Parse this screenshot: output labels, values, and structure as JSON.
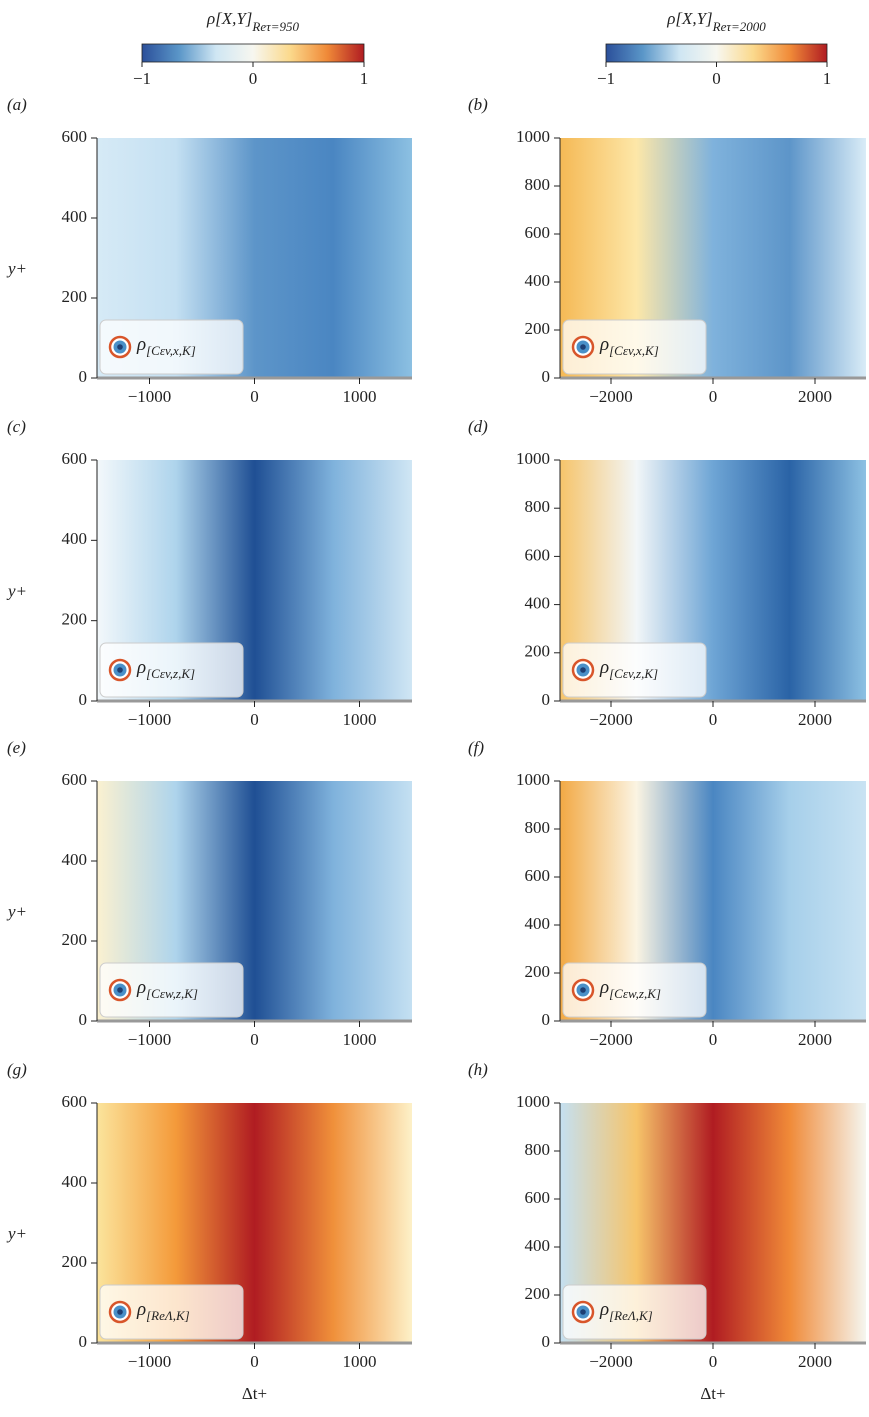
{
  "colorbars": [
    {
      "label": "ρ[X,Y]",
      "label_subscript": "Reτ=950",
      "ticks": [
        {
          "value": -1,
          "label": "−1"
        },
        0,
        1
      ],
      "lim": [
        -1,
        1
      ],
      "colormap": [
        "#2b4f9a",
        "#5a96c8",
        "#cfe6f3",
        "#f7f7f0",
        "#fbd98c",
        "#f08a38",
        "#b01c22"
      ]
    },
    {
      "label": "ρ[X,Y]",
      "label_subscript": "Reτ=2000",
      "ticks": [
        {
          "value": -1,
          "label": "−1"
        },
        0,
        1
      ],
      "lim": [
        -1,
        1
      ],
      "colormap": [
        "#2b4f9a",
        "#5a96c8",
        "#cfe6f3",
        "#f7f7f0",
        "#fbd98c",
        "#f08a38",
        "#b01c22"
      ]
    }
  ],
  "chart_data": [
    {
      "type": "contour",
      "panel_label": "(a)",
      "legend": "ρ",
      "legend_subscript": "[Cεv,x,K]",
      "ylabel": "y+",
      "xlim": [
        -1500,
        1500
      ],
      "ylim": [
        0,
        600
      ],
      "xticks": [
        {
          "value": -1000,
          "label": "−1000"
        },
        0,
        1000
      ],
      "yticks": [
        0,
        200,
        400,
        600
      ],
      "colors": [
        "#d6eaf6",
        "#c4e0f2",
        "#5d95c9",
        "#4a86c2",
        "#8cc0e2"
      ]
    },
    {
      "type": "contour",
      "panel_label": "(b)",
      "legend": "ρ",
      "legend_subscript": "[Cεv,x,K]",
      "xlim": [
        -3000,
        3000
      ],
      "ylim": [
        0,
        1000
      ],
      "xticks": [
        {
          "value": -2000,
          "label": "−2000"
        },
        0,
        2000
      ],
      "yticks": [
        0,
        200,
        400,
        600,
        800,
        1000
      ],
      "colors": [
        "#f5b955",
        "#fde7a8",
        "#7fb2dc",
        "#5d95c9",
        "#d9ecf7"
      ]
    },
    {
      "type": "contour",
      "panel_label": "(c)",
      "legend": "ρ",
      "legend_subscript": "[Cεv,z,K]",
      "ylabel": "y+",
      "xlim": [
        -1500,
        1500
      ],
      "ylim": [
        0,
        600
      ],
      "xticks": [
        {
          "value": -1000,
          "label": "−1000"
        },
        0,
        1000
      ],
      "yticks": [
        0,
        200,
        400,
        600
      ],
      "colors": [
        "#f3f8fb",
        "#aed4ec",
        "#1f4f94",
        "#7fb2dc",
        "#d0e6f4"
      ]
    },
    {
      "type": "contour",
      "panel_label": "(d)",
      "legend": "ρ",
      "legend_subscript": "[Cεv,z,K]",
      "xlim": [
        -3000,
        3000
      ],
      "ylim": [
        0,
        1000
      ],
      "xticks": [
        {
          "value": -2000,
          "label": "−2000"
        },
        0,
        2000
      ],
      "yticks": [
        0,
        200,
        400,
        600,
        800,
        1000
      ],
      "colors": [
        "#f6c46a",
        "#f2f6f8",
        "#6ea5d5",
        "#2a63a6",
        "#8dc1e3"
      ]
    },
    {
      "type": "contour",
      "panel_label": "(e)",
      "legend": "ρ",
      "legend_subscript": "[Cεw,z,K]",
      "ylabel": "y+",
      "xlim": [
        -1500,
        1500
      ],
      "ylim": [
        0,
        600
      ],
      "xticks": [
        {
          "value": -1000,
          "label": "−1000"
        },
        0,
        1000
      ],
      "yticks": [
        0,
        200,
        400,
        600
      ],
      "colors": [
        "#fbf1d0",
        "#aed4ec",
        "#1f4f94",
        "#7fb2dc",
        "#c4e0f2"
      ]
    },
    {
      "type": "contour",
      "panel_label": "(f)",
      "legend": "ρ",
      "legend_subscript": "[Cεw,z,K]",
      "xlim": [
        -3000,
        3000
      ],
      "ylim": [
        0,
        1000
      ],
      "xticks": [
        {
          "value": -2000,
          "label": "−2000"
        },
        0,
        2000
      ],
      "yticks": [
        0,
        200,
        400,
        600,
        800,
        1000
      ],
      "colors": [
        "#f2a944",
        "#fbf4e2",
        "#4a86c2",
        "#a6cfea",
        "#c9e3f3"
      ]
    },
    {
      "type": "contour",
      "panel_label": "(g)",
      "legend": "ρ",
      "legend_subscript": "[ReΛ,K]",
      "ylabel": "y+",
      "xlabel": "Δt+",
      "xlim": [
        -1500,
        1500
      ],
      "ylim": [
        0,
        600
      ],
      "xticks": [
        {
          "value": -1000,
          "label": "−1000"
        },
        0,
        1000
      ],
      "yticks": [
        0,
        200,
        400,
        600
      ],
      "colors": [
        "#fbe49c",
        "#f49a3a",
        "#b01c22",
        "#f0903a",
        "#fdf1c8"
      ]
    },
    {
      "type": "contour",
      "panel_label": "(h)",
      "legend": "ρ",
      "legend_subscript": "[ReΛ,K]",
      "xlabel": "Δt+",
      "xlim": [
        -3000,
        3000
      ],
      "ylim": [
        0,
        1000
      ],
      "xticks": [
        {
          "value": -2000,
          "label": "−2000"
        },
        0,
        2000
      ],
      "yticks": [
        0,
        200,
        400,
        600,
        800,
        1000
      ],
      "colors": [
        "#c4e0f2",
        "#f6c46a",
        "#b01c22",
        "#f08a38",
        "#f5f6f0"
      ]
    }
  ]
}
